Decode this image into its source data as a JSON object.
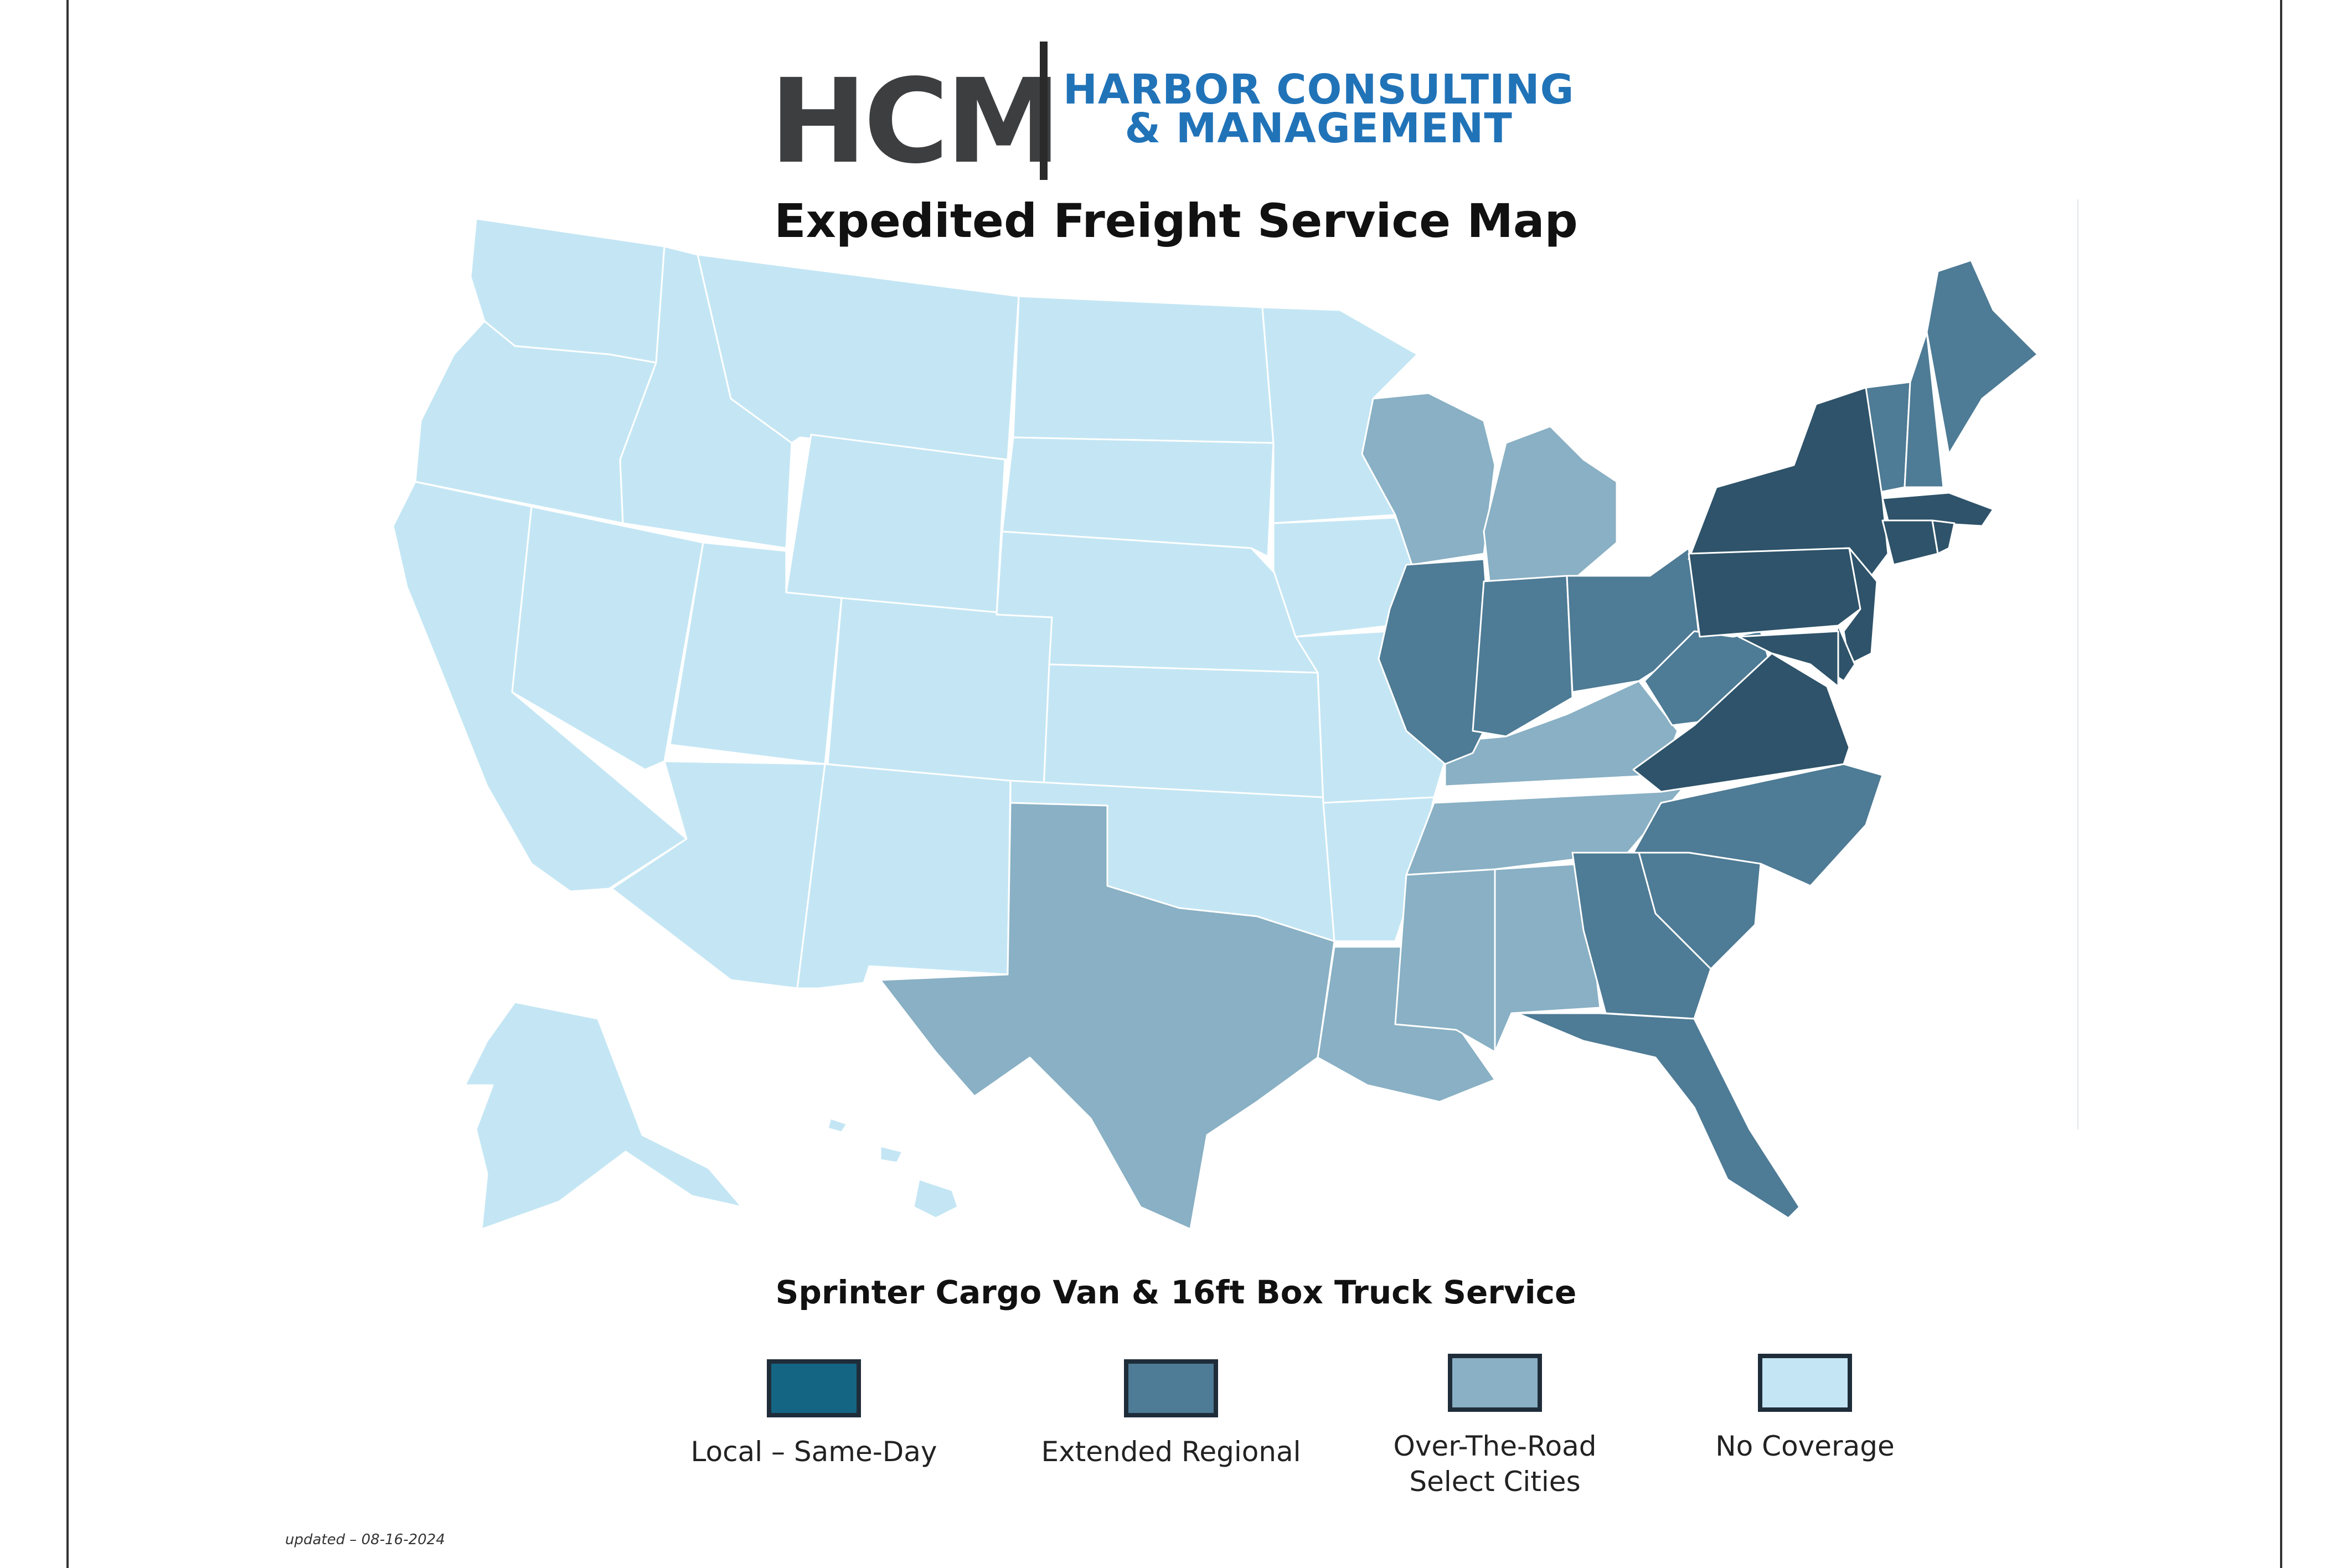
{
  "logo": {
    "mark": "HCM",
    "name_line1": "HARBOR CONSULTING",
    "name_line2": "& MANAGEMENT",
    "mark_color": "#3d3e40",
    "name_color": "#2173b8"
  },
  "title": "Expedited Freight Service Map",
  "subtitle": "Sprinter Cargo Van & 16ft Box Truck Service",
  "legend": [
    {
      "label_line1": "Local – Same-Day",
      "label_line2": "",
      "color": "#146583"
    },
    {
      "label_line1": "Extended Regional",
      "label_line2": "",
      "color": "#4e7b95"
    },
    {
      "label_line1": "Over-The-Road",
      "label_line2": "Select Cities",
      "color": "#89b0c4"
    },
    {
      "label_line1": "No Coverage",
      "label_line2": "",
      "color": "#c4e6f4"
    }
  ],
  "map_colors": {
    "none": "#c4e6f4",
    "otr": "#89b0c4",
    "regional": "#4e7b95",
    "dark": "#2e536a"
  },
  "coverage": {
    "no_coverage": [
      "WA",
      "OR",
      "CA",
      "NV",
      "ID",
      "MT",
      "WY",
      "UT",
      "AZ",
      "CO",
      "NM",
      "ND",
      "SD",
      "NE",
      "KS",
      "OK",
      "MN",
      "IA",
      "MO",
      "AR",
      "AK",
      "HI"
    ],
    "over_the_road": [
      "TX",
      "LA",
      "MS",
      "AL",
      "TN",
      "KY",
      "WI",
      "MI"
    ],
    "extended_regional": [
      "IL",
      "IN",
      "OH",
      "WV",
      "NC",
      "SC",
      "GA",
      "FL",
      "ME",
      "NH",
      "VT"
    ],
    "dark_regional": [
      "NY",
      "PA",
      "NJ",
      "DE",
      "MD",
      "VA",
      "MA",
      "CT",
      "RI"
    ]
  },
  "updated": "updated – 08-16-2024"
}
